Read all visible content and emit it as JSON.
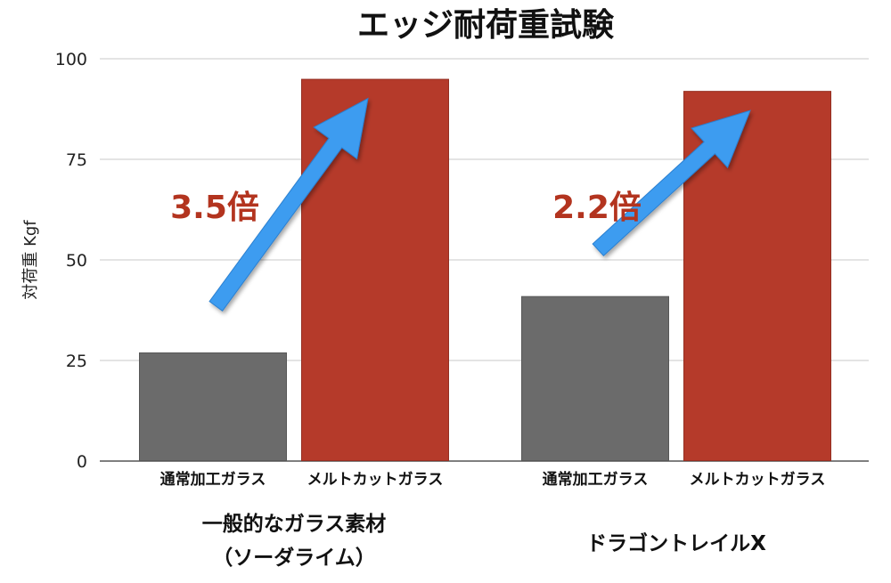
{
  "colors": {
    "normal_glass": "#6b6b6b",
    "meltcut_glass": "#b53a2a",
    "arrow": "#3d9cf0",
    "ratio_text": "#b3341f",
    "grid": "#c8c8c8"
  },
  "chart_data": {
    "type": "bar",
    "title": "エッジ耐荷重試験",
    "ylabel": "対荷重 Kgf",
    "ylim": [
      0,
      100
    ],
    "yticks": [
      0,
      25,
      50,
      75,
      100
    ],
    "grid": true,
    "groups": [
      {
        "label_lines": [
          "一般的なガラス素材",
          "（ソーダライム）"
        ],
        "ratio": "3.5倍",
        "bars": [
          {
            "category": "通常加工ガラス",
            "value": 27,
            "color_key": "normal_glass"
          },
          {
            "category": "メルトカットガラス",
            "value": 95,
            "color_key": "meltcut_glass"
          }
        ]
      },
      {
        "label_lines": [
          "ドラゴントレイルX"
        ],
        "ratio": "2.2倍",
        "bars": [
          {
            "category": "通常加工ガラス",
            "value": 41,
            "color_key": "normal_glass"
          },
          {
            "category": "メルトカットガラス",
            "value": 92,
            "color_key": "meltcut_glass"
          }
        ]
      }
    ]
  }
}
